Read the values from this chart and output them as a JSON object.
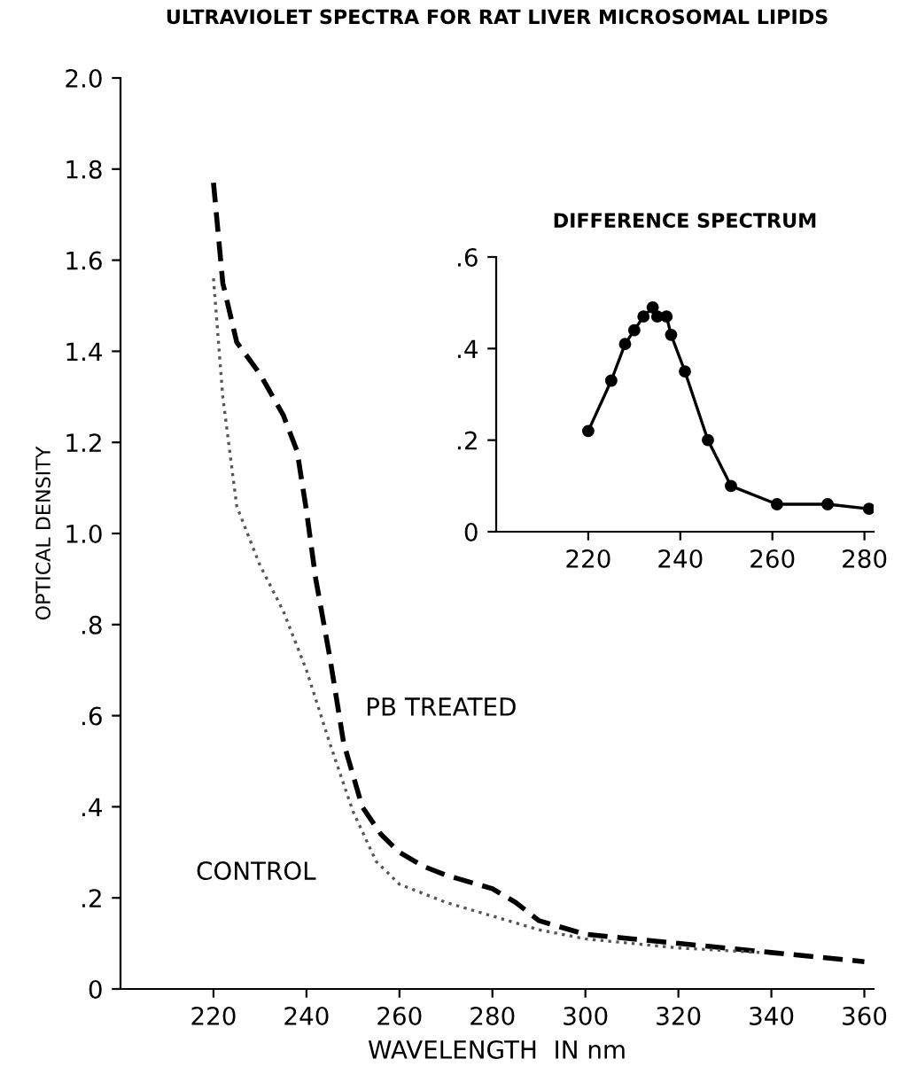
{
  "chart_data": [
    {
      "type": "line",
      "title": "ULTRAVIOLET SPECTRA FOR RAT LIVER MICROSOMAL LIPIDS",
      "xlabel": "WAVELENGTH  IN nm",
      "ylabel": "OPTICAL DENSITY",
      "xlim": [
        200,
        362
      ],
      "ylim": [
        0,
        2.0
      ],
      "xticks": [
        220,
        240,
        260,
        280,
        300,
        320,
        340,
        360
      ],
      "yticks": [
        {
          "value": 0,
          "label": "0"
        },
        {
          "value": 0.2,
          "label": ".2"
        },
        {
          "value": 0.4,
          "label": ".4"
        },
        {
          "value": 0.6,
          "label": ".6"
        },
        {
          "value": 0.8,
          "label": ".8"
        },
        {
          "value": 1.0,
          "label": "1.0"
        },
        {
          "value": 1.2,
          "label": "1.2"
        },
        {
          "value": 1.4,
          "label": "1.4"
        },
        {
          "value": 1.6,
          "label": "1.6"
        },
        {
          "value": 1.8,
          "label": "1.8"
        },
        {
          "value": 2.0,
          "label": "2.0"
        }
      ],
      "grid": false,
      "legend": false,
      "marker": "none",
      "series": [
        {
          "name": "PB TREATED",
          "color": "#000000",
          "line_style": "dashed",
          "x": [
            220,
            222,
            225,
            230,
            235,
            238,
            240,
            242,
            245,
            248,
            252,
            256,
            260,
            265,
            270,
            280,
            285,
            290,
            300,
            320,
            340,
            360
          ],
          "values": [
            1.77,
            1.55,
            1.42,
            1.35,
            1.26,
            1.18,
            1.05,
            0.9,
            0.73,
            0.54,
            0.4,
            0.34,
            0.3,
            0.27,
            0.25,
            0.22,
            0.19,
            0.15,
            0.12,
            0.1,
            0.08,
            0.06
          ]
        },
        {
          "name": "CONTROL",
          "color": "#555555",
          "line_style": "dotted",
          "x": [
            220,
            222,
            225,
            230,
            235,
            240,
            245,
            250,
            255,
            260,
            270,
            280,
            290,
            300,
            320,
            338
          ],
          "values": [
            1.56,
            1.3,
            1.06,
            0.93,
            0.83,
            0.7,
            0.54,
            0.39,
            0.28,
            0.23,
            0.19,
            0.16,
            0.13,
            0.11,
            0.09,
            0.08
          ]
        }
      ]
    },
    {
      "type": "line",
      "title": "DIFFERENCE SPECTRUM",
      "xlim": [
        200,
        282
      ],
      "ylim": [
        0,
        0.6
      ],
      "xticks": [
        220,
        240,
        260,
        280
      ],
      "yticks": [
        {
          "value": 0,
          "label": "0"
        },
        {
          "value": 0.2,
          "label": ".2"
        },
        {
          "value": 0.4,
          "label": ".4"
        },
        {
          "value": 0.6,
          "label": ".6"
        }
      ],
      "grid": false,
      "legend": false,
      "marker": "circle",
      "line_style": "solid",
      "series": [
        {
          "color": "#000000",
          "x": [
            220,
            225,
            228,
            230,
            232,
            234,
            235,
            237,
            238,
            241,
            246,
            251,
            261,
            272,
            281
          ],
          "values": [
            0.22,
            0.33,
            0.41,
            0.44,
            0.47,
            0.49,
            0.47,
            0.47,
            0.43,
            0.35,
            0.2,
            0.1,
            0.06,
            0.06,
            0.05
          ]
        }
      ]
    }
  ]
}
